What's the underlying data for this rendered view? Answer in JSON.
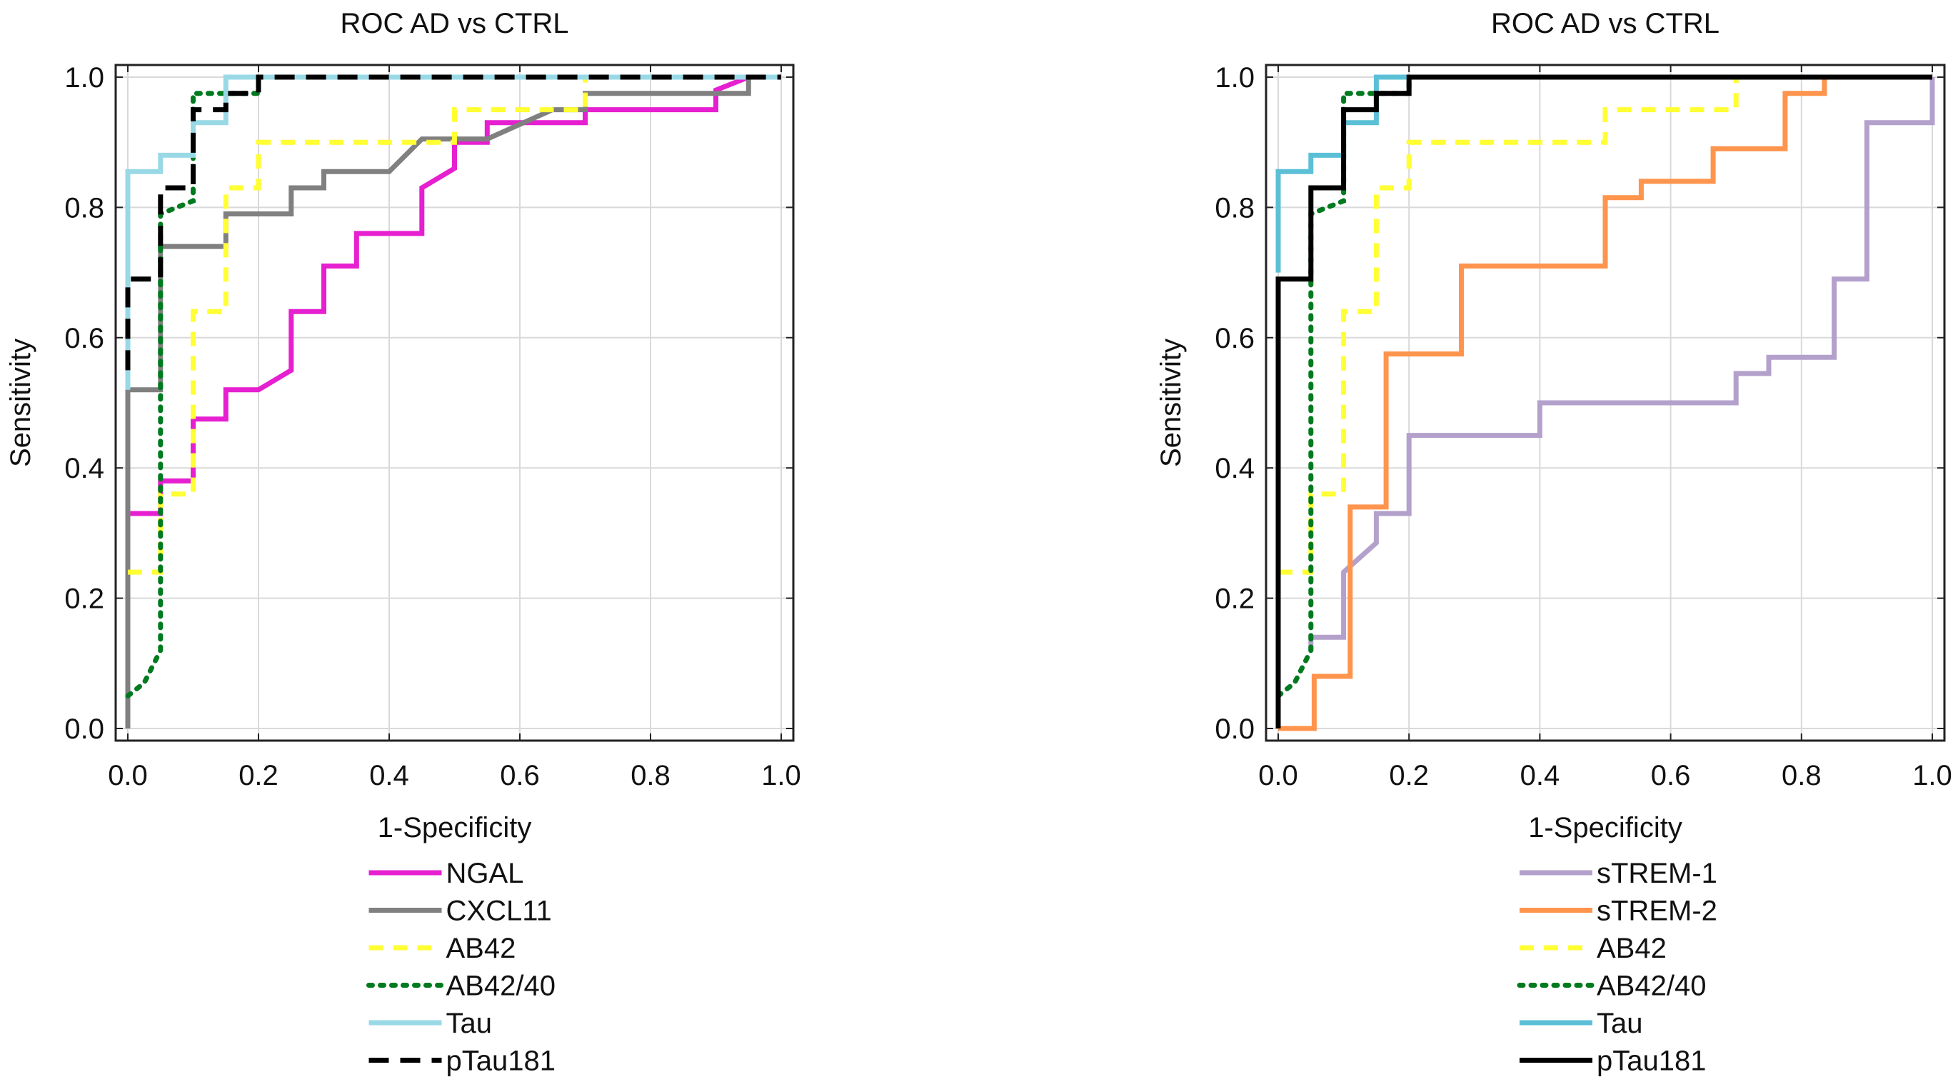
{
  "chart_data": [
    {
      "type": "line",
      "title": "ROC AD vs CTRL",
      "xlabel": "1-Specificity",
      "ylabel": "Sensitivity",
      "xlim": [
        0,
        1
      ],
      "ylim": [
        0,
        1
      ],
      "xticks": [
        "0.0",
        "0.2",
        "0.4",
        "0.6",
        "0.8",
        "1.0"
      ],
      "yticks": [
        "0.0",
        "0.2",
        "0.4",
        "0.6",
        "0.8",
        "1.0"
      ],
      "grid": true,
      "legend_position": "bottom",
      "series": [
        {
          "name": "NGAL",
          "color": "#e61fd0",
          "dash": "solid",
          "x": [
            0,
            0.05,
            0.05,
            0.1,
            0.1,
            0.15,
            0.15,
            0.2,
            0.25,
            0.25,
            0.3,
            0.3,
            0.35,
            0.35,
            0.45,
            0.45,
            0.5,
            0.5,
            0.55,
            0.55,
            0.6,
            0.7,
            0.7,
            0.8,
            0.9,
            0.9,
            0.95,
            1.0
          ],
          "y": [
            0.33,
            0.33,
            0.38,
            0.38,
            0.475,
            0.475,
            0.52,
            0.52,
            0.55,
            0.64,
            0.64,
            0.71,
            0.71,
            0.76,
            0.76,
            0.83,
            0.86,
            0.9,
            0.9,
            0.93,
            0.93,
            0.93,
            0.95,
            0.95,
            0.95,
            0.98,
            1.0,
            1.0
          ]
        },
        {
          "name": "CXCL11",
          "color": "#808080",
          "dash": "solid",
          "x": [
            0,
            0,
            0.05,
            0.05,
            0.15,
            0.15,
            0.25,
            0.25,
            0.3,
            0.3,
            0.4,
            0.45,
            0.55,
            0.65,
            0.7,
            0.7,
            0.95,
            0.95,
            1.0
          ],
          "y": [
            0,
            0.52,
            0.52,
            0.74,
            0.74,
            0.79,
            0.79,
            0.83,
            0.83,
            0.855,
            0.855,
            0.905,
            0.905,
            0.95,
            0.95,
            0.975,
            0.975,
            1.0,
            1.0
          ]
        },
        {
          "name": "AB42",
          "color": "#ffff33",
          "dash": "dashed",
          "x": [
            0,
            0.05,
            0.05,
            0.1,
            0.1,
            0.15,
            0.15,
            0.2,
            0.2,
            0.5,
            0.5,
            0.6,
            0.6,
            0.7,
            0.7,
            1.0
          ],
          "y": [
            0.24,
            0.24,
            0.36,
            0.36,
            0.64,
            0.64,
            0.83,
            0.83,
            0.9,
            0.9,
            0.95,
            0.95,
            0.95,
            0.95,
            1.0,
            1.0
          ]
        },
        {
          "name": "AB42/40",
          "color": "#007a1f",
          "dash": "dotted",
          "x": [
            0,
            0.025,
            0.025,
            0.05,
            0.05,
            0.1,
            0.1,
            0.15,
            0.2,
            0.2,
            1.0
          ],
          "y": [
            0.05,
            0.07,
            0.07,
            0.12,
            0.79,
            0.81,
            0.975,
            0.975,
            0.975,
            1.0,
            1.0
          ]
        },
        {
          "name": "Tau",
          "color": "#99d9e6",
          "dash": "solid",
          "x": [
            0,
            0,
            0.05,
            0.05,
            0.1,
            0.1,
            0.15,
            0.15,
            1.0
          ],
          "y": [
            0.52,
            0.855,
            0.855,
            0.88,
            0.88,
            0.93,
            0.93,
            1.0,
            1.0
          ]
        },
        {
          "name": "pTau181",
          "color": "#000000",
          "dash": "longdash",
          "x": [
            0,
            0,
            0.05,
            0.05,
            0.1,
            0.1,
            0.15,
            0.15,
            0.2,
            0.2,
            1.0
          ],
          "y": [
            0.55,
            0.69,
            0.69,
            0.83,
            0.83,
            0.95,
            0.95,
            0.975,
            0.975,
            1.0,
            1.0
          ]
        }
      ]
    },
    {
      "type": "line",
      "title": "ROC AD vs CTRL",
      "xlabel": "1-Specificity",
      "ylabel": "Sensitivity",
      "xlim": [
        0,
        1
      ],
      "ylim": [
        0,
        1
      ],
      "xticks": [
        "0.0",
        "0.2",
        "0.4",
        "0.6",
        "0.8",
        "1.0"
      ],
      "yticks": [
        "0.0",
        "0.2",
        "0.4",
        "0.6",
        "0.8",
        "1.0"
      ],
      "grid": true,
      "legend_position": "bottom",
      "series": [
        {
          "name": "sTREM-1",
          "color": "#b3a1cc",
          "dash": "solid",
          "x": [
            0.05,
            0.05,
            0.1,
            0.1,
            0.15,
            0.15,
            0.2,
            0.2,
            0.4,
            0.4,
            0.7,
            0.7,
            0.75,
            0.75,
            0.85,
            0.85,
            0.9,
            0.9,
            1.0,
            1.0
          ],
          "y": [
            0.12,
            0.14,
            0.14,
            0.24,
            0.285,
            0.33,
            0.33,
            0.45,
            0.45,
            0.5,
            0.5,
            0.545,
            0.545,
            0.57,
            0.57,
            0.69,
            0.69,
            0.93,
            0.93,
            1.0
          ]
        },
        {
          "name": "sTREM-2",
          "color": "#ff944d",
          "dash": "solid",
          "x": [
            0,
            0.055,
            0.055,
            0.11,
            0.11,
            0.165,
            0.165,
            0.28,
            0.28,
            0.5,
            0.5,
            0.555,
            0.555,
            0.665,
            0.665,
            0.775,
            0.775,
            0.835,
            0.835
          ],
          "y": [
            0,
            0,
            0.08,
            0.08,
            0.34,
            0.34,
            0.575,
            0.575,
            0.71,
            0.71,
            0.815,
            0.815,
            0.84,
            0.84,
            0.89,
            0.89,
            0.975,
            0.975,
            1.0
          ]
        },
        {
          "name": "AB42",
          "color": "#ffff33",
          "dash": "dashed",
          "x": [
            0,
            0.05,
            0.05,
            0.1,
            0.1,
            0.15,
            0.15,
            0.2,
            0.2,
            0.5,
            0.5,
            0.7,
            0.7,
            1.0
          ],
          "y": [
            0.24,
            0.24,
            0.36,
            0.36,
            0.64,
            0.64,
            0.83,
            0.83,
            0.9,
            0.9,
            0.95,
            0.95,
            1.0,
            1.0
          ]
        },
        {
          "name": "AB42/40",
          "color": "#007a1f",
          "dash": "dotted",
          "x": [
            0,
            0.025,
            0.025,
            0.05,
            0.05,
            0.1,
            0.1,
            0.15,
            0.2,
            0.2,
            1.0
          ],
          "y": [
            0.05,
            0.07,
            0.07,
            0.12,
            0.79,
            0.81,
            0.975,
            0.975,
            0.975,
            1.0,
            1.0
          ]
        },
        {
          "name": "Tau",
          "color": "#5bc0d6",
          "dash": "solid",
          "x": [
            0,
            0,
            0.05,
            0.05,
            0.1,
            0.1,
            0.15,
            0.15,
            1.0
          ],
          "y": [
            0.7,
            0.855,
            0.855,
            0.88,
            0.88,
            0.93,
            0.93,
            1.0,
            1.0
          ]
        },
        {
          "name": "pTau181",
          "color": "#000000",
          "dash": "solid",
          "x": [
            0,
            0,
            0.05,
            0.05,
            0.1,
            0.1,
            0.15,
            0.15,
            0.2,
            0.2,
            1.0
          ],
          "y": [
            0,
            0.69,
            0.69,
            0.83,
            0.83,
            0.95,
            0.95,
            0.975,
            0.975,
            1.0,
            1.0
          ]
        }
      ]
    }
  ]
}
